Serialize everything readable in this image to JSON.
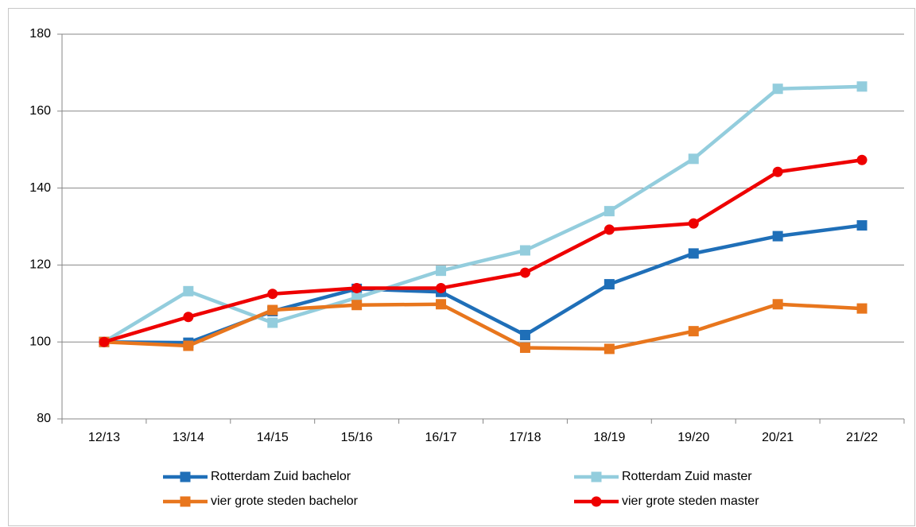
{
  "chart_data": {
    "type": "line",
    "categories": [
      "12/13",
      "13/14",
      "14/15",
      "15/16",
      "16/17",
      "17/18",
      "18/19",
      "19/20",
      "20/21",
      "21/22"
    ],
    "series": [
      {
        "name": "Rotterdam Zuid bachelor",
        "color": "#1f6fb8",
        "marker": "square",
        "values": [
          100,
          99.8,
          108,
          113.8,
          113,
          101.8,
          115,
          123,
          127.5,
          130.3
        ]
      },
      {
        "name": "Rotterdam Zuid master",
        "color": "#93cddd",
        "marker": "square",
        "values": [
          100,
          113.2,
          105,
          111.5,
          118.5,
          123.8,
          134,
          147.6,
          165.8,
          166.4
        ]
      },
      {
        "name": "vier grote steden bachelor",
        "color": "#e8761d",
        "marker": "square",
        "values": [
          100,
          99,
          108.3,
          109.6,
          109.8,
          98.5,
          98.2,
          102.8,
          109.8,
          108.7
        ]
      },
      {
        "name": "vier grote steden master",
        "color": "#ee0000",
        "marker": "circle",
        "values": [
          100,
          106.5,
          112.5,
          114,
          114,
          118,
          129.2,
          130.8,
          144.2,
          147.3
        ]
      }
    ],
    "ylim": [
      80,
      180
    ],
    "yticks": [
      80,
      100,
      120,
      140,
      160,
      180
    ],
    "grid": true,
    "legend": "bottom"
  }
}
